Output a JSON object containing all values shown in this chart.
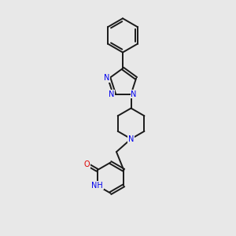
{
  "bg_color": "#e8e8e8",
  "bond_color": "#1a1a1a",
  "bond_width": 1.4,
  "n_color": "#0000ee",
  "o_color": "#dd0000",
  "font_size_atom": 7.0,
  "fig_size": [
    3.0,
    3.0
  ],
  "dpi": 100,
  "xlim": [
    0,
    10
  ],
  "ylim": [
    0,
    10
  ]
}
